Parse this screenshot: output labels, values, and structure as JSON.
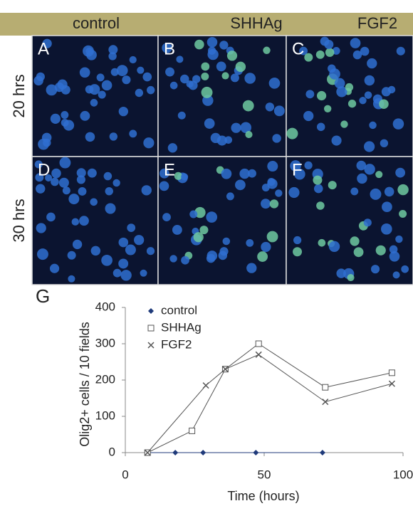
{
  "panels": {
    "headers": [
      "control",
      "SHHAg",
      "FGF2"
    ],
    "letters": [
      "A",
      "B",
      "C",
      "D",
      "E",
      "F"
    ],
    "rows": [
      "20 hrs",
      "30 hrs"
    ]
  },
  "chart_data": {
    "type": "line",
    "panel_label": "G",
    "x_label": "Time (hours)",
    "y_label": "Olig2+ cells / 10 fields",
    "xlim": [
      0,
      100
    ],
    "xticks": [
      0,
      50,
      100
    ],
    "ylim": [
      0,
      400
    ],
    "yticks": [
      0,
      100,
      200,
      300,
      400
    ],
    "series": [
      {
        "name": "control",
        "color": "#1f3a7a",
        "marker": "diamond",
        "x": [
          8,
          18,
          28,
          47,
          71
        ],
        "values": [
          0,
          0,
          0,
          0,
          0
        ]
      },
      {
        "name": "SHHAg",
        "color": "#555555",
        "marker": "square",
        "x": [
          8,
          24,
          36,
          48,
          72,
          96
        ],
        "values": [
          0,
          60,
          230,
          300,
          180,
          220
        ]
      },
      {
        "name": "FGF2",
        "color": "#555555",
        "marker": "cross",
        "x": [
          8,
          29,
          36,
          48,
          72,
          96
        ],
        "values": [
          0,
          185,
          230,
          270,
          140,
          190
        ]
      }
    ]
  }
}
